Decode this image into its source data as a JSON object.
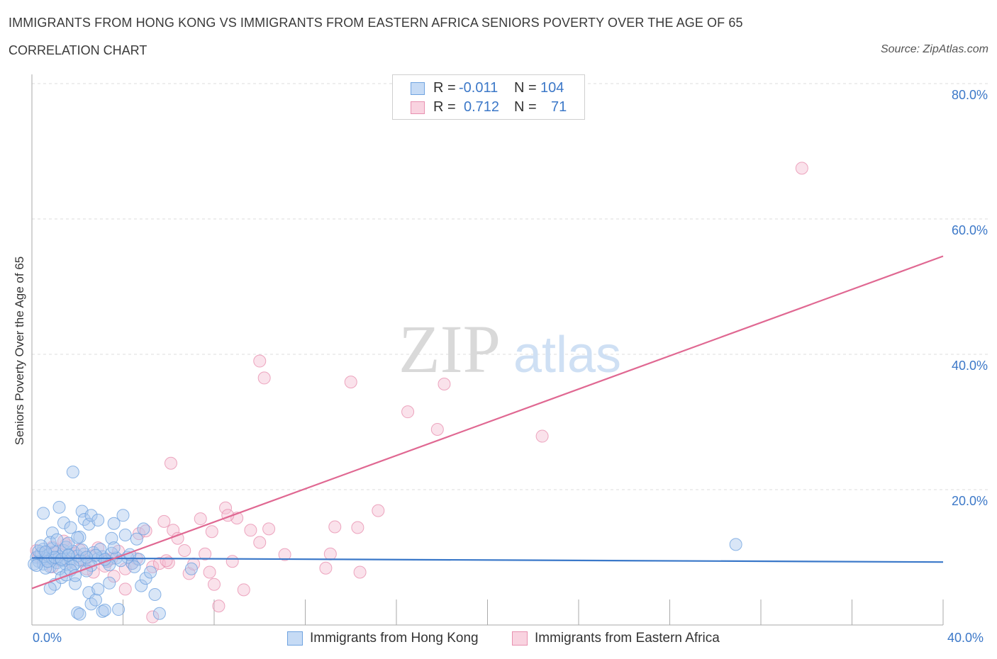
{
  "header": {
    "title": "IMMIGRANTS FROM HONG KONG VS IMMIGRANTS FROM EASTERN AFRICA SENIORS POVERTY OVER THE AGE OF 65",
    "subtitle": "CORRELATION CHART",
    "source": "Source: ZipAtlas.com"
  },
  "stats": {
    "r_label": "R =",
    "n_label": "N =",
    "blue": {
      "r": "-0.011",
      "n": "104"
    },
    "pink": {
      "r": "0.712",
      "n": "71"
    }
  },
  "colors": {
    "blue": "#6fa3e0",
    "blue_fill": "#aac8ee",
    "blue_line": "#3a78c9",
    "pink": "#e891b0",
    "pink_fill": "#f5bfd2",
    "pink_line": "#e06892",
    "axis_text": "#3c78c8",
    "grid": "#dddddd"
  },
  "watermark": {
    "zip": "ZIP",
    "atlas": "atlas"
  },
  "chart_data": {
    "type": "scatter",
    "title": "IMMIGRANTS FROM HONG KONG VS IMMIGRANTS FROM EASTERN AFRICA SENIORS POVERTY OVER THE AGE OF 65",
    "xlabel": "",
    "ylabel": "Seniors Poverty Over the Age of 65",
    "xlim": [
      0,
      40
    ],
    "ylim": [
      0,
      80
    ],
    "x_tick_labels": [
      "0.0%",
      "40.0%"
    ],
    "y_ticks": [
      20,
      40,
      60,
      80
    ],
    "y_tick_labels": [
      "20.0%",
      "40.0%",
      "60.0%",
      "80.0%"
    ],
    "grid": true,
    "series": [
      {
        "name": "Immigrants from Hong Kong",
        "color": "blue",
        "R": -0.011,
        "N": 104,
        "trend": {
          "x": [
            0,
            40
          ],
          "y": [
            9.9,
            9.3
          ]
        },
        "points": [
          [
            0.2,
            10.0
          ],
          [
            0.3,
            9.4
          ],
          [
            0.4,
            10.6
          ],
          [
            0.5,
            9.0
          ],
          [
            0.5,
            11.2
          ],
          [
            0.6,
            9.8
          ],
          [
            0.7,
            10.3
          ],
          [
            0.8,
            8.6
          ],
          [
            0.9,
            9.9
          ],
          [
            1.0,
            10.8
          ],
          [
            1.1,
            9.2
          ],
          [
            1.2,
            10.1
          ],
          [
            1.3,
            9.5
          ],
          [
            1.4,
            11.0
          ],
          [
            1.5,
            8.9
          ],
          [
            1.6,
            10.4
          ],
          [
            1.7,
            9.7
          ],
          [
            1.8,
            10.9
          ],
          [
            1.9,
            9.1
          ],
          [
            2.0,
            10.2
          ],
          [
            2.1,
            9.6
          ],
          [
            2.3,
            10.5
          ],
          [
            2.5,
            9.3
          ],
          [
            2.7,
            10.7
          ],
          [
            2.9,
            9.8
          ],
          [
            3.1,
            10.1
          ],
          [
            3.3,
            9.4
          ],
          [
            3.5,
            10.6
          ],
          [
            3.7,
            9.9
          ],
          [
            0.1,
            9.0
          ],
          [
            0.3,
            10.9
          ],
          [
            0.6,
            8.4
          ],
          [
            0.9,
            11.3
          ],
          [
            1.2,
            8.3
          ],
          [
            1.5,
            11.5
          ],
          [
            1.8,
            8.7
          ],
          [
            2.2,
            11.1
          ],
          [
            2.6,
            8.8
          ],
          [
            3.0,
            11.2
          ],
          [
            3.4,
            8.9
          ],
          [
            0.5,
            16.5
          ],
          [
            0.9,
            13.6
          ],
          [
            1.2,
            17.4
          ],
          [
            1.4,
            15.1
          ],
          [
            1.7,
            14.4
          ],
          [
            1.8,
            22.6
          ],
          [
            2.1,
            13.0
          ],
          [
            2.2,
            16.8
          ],
          [
            2.3,
            15.6
          ],
          [
            2.5,
            14.9
          ],
          [
            2.6,
            16.2
          ],
          [
            2.9,
            15.5
          ],
          [
            3.5,
            12.8
          ],
          [
            3.6,
            15.0
          ],
          [
            4.0,
            16.2
          ],
          [
            4.1,
            13.3
          ],
          [
            4.6,
            12.7
          ],
          [
            4.9,
            14.2
          ],
          [
            0.8,
            12.2
          ],
          [
            1.1,
            12.6
          ],
          [
            1.6,
            12.1
          ],
          [
            2.0,
            12.9
          ],
          [
            1.0,
            6.0
          ],
          [
            1.3,
            7.0
          ],
          [
            1.5,
            7.4
          ],
          [
            1.7,
            8.1
          ],
          [
            1.9,
            6.1
          ],
          [
            2.4,
            8.0
          ],
          [
            2.0,
            1.8
          ],
          [
            2.1,
            1.6
          ],
          [
            2.5,
            4.8
          ],
          [
            2.6,
            3.1
          ],
          [
            2.8,
            3.7
          ],
          [
            3.1,
            2.0
          ],
          [
            3.2,
            2.2
          ],
          [
            3.4,
            6.2
          ],
          [
            3.8,
            2.3
          ],
          [
            4.4,
            9.1
          ],
          [
            4.7,
            9.7
          ],
          [
            4.8,
            5.8
          ],
          [
            5.0,
            6.9
          ],
          [
            5.2,
            7.8
          ],
          [
            5.4,
            4.5
          ],
          [
            5.6,
            1.7
          ],
          [
            4.5,
            8.6
          ],
          [
            4.2,
            10.0
          ],
          [
            3.9,
            9.5
          ],
          [
            2.8,
            10.3
          ],
          [
            3.6,
            11.4
          ],
          [
            4.3,
            10.4
          ],
          [
            0.2,
            8.8
          ],
          [
            0.4,
            11.7
          ],
          [
            0.7,
            9.4
          ],
          [
            1.0,
            10.0
          ],
          [
            1.3,
            9.7
          ],
          [
            1.6,
            10.3
          ],
          [
            2.4,
            10.0
          ],
          [
            3.2,
            9.7
          ],
          [
            7.0,
            8.3
          ],
          [
            0.8,
            5.4
          ],
          [
            1.9,
            7.3
          ],
          [
            2.9,
            5.3
          ],
          [
            30.9,
            11.9
          ],
          [
            0.6,
            10.8
          ]
        ]
      },
      {
        "name": "Immigrants from Eastern Africa",
        "color": "pink",
        "R": 0.712,
        "N": 71,
        "trend": {
          "x": [
            0,
            40
          ],
          "y": [
            5.4,
            54.5
          ]
        },
        "points": [
          [
            0.2,
            11.0
          ],
          [
            0.3,
            10.1
          ],
          [
            0.5,
            9.6
          ],
          [
            0.7,
            10.8
          ],
          [
            0.9,
            11.5
          ],
          [
            1.1,
            9.8
          ],
          [
            1.3,
            10.4
          ],
          [
            1.5,
            11.9
          ],
          [
            1.7,
            9.3
          ],
          [
            1.9,
            10.6
          ],
          [
            2.1,
            11.1
          ],
          [
            2.3,
            9.5
          ],
          [
            2.6,
            10.2
          ],
          [
            2.9,
            11.4
          ],
          [
            3.2,
            8.7
          ],
          [
            3.5,
            9.8
          ],
          [
            3.8,
            10.9
          ],
          [
            4.1,
            8.3
          ],
          [
            4.4,
            9.1
          ],
          [
            4.7,
            13.5
          ],
          [
            5.0,
            13.9
          ],
          [
            5.3,
            8.6
          ],
          [
            5.6,
            9.1
          ],
          [
            5.8,
            15.3
          ],
          [
            6.0,
            9.2
          ],
          [
            6.2,
            14.0
          ],
          [
            6.4,
            12.8
          ],
          [
            6.7,
            11.0
          ],
          [
            6.9,
            7.6
          ],
          [
            7.1,
            9.0
          ],
          [
            7.4,
            15.7
          ],
          [
            7.6,
            10.5
          ],
          [
            7.8,
            7.8
          ],
          [
            8.0,
            6.0
          ],
          [
            8.2,
            2.8
          ],
          [
            8.5,
            17.3
          ],
          [
            8.8,
            9.4
          ],
          [
            9.0,
            15.8
          ],
          [
            9.3,
            5.2
          ],
          [
            9.6,
            14.0
          ],
          [
            10.0,
            12.2
          ],
          [
            10.4,
            14.2
          ],
          [
            11.1,
            10.4
          ],
          [
            12.9,
            8.4
          ],
          [
            13.1,
            10.5
          ],
          [
            13.3,
            14.5
          ],
          [
            14.3,
            14.4
          ],
          [
            14.4,
            7.8
          ],
          [
            15.2,
            16.9
          ],
          [
            16.5,
            31.5
          ],
          [
            17.8,
            28.9
          ],
          [
            18.1,
            35.6
          ],
          [
            14.0,
            35.9
          ],
          [
            10.0,
            39.0
          ],
          [
            10.2,
            36.5
          ],
          [
            6.1,
            23.9
          ],
          [
            22.4,
            27.9
          ],
          [
            33.8,
            67.5
          ],
          [
            4.1,
            5.3
          ],
          [
            5.3,
            1.2
          ],
          [
            3.3,
            9.6
          ],
          [
            2.7,
            7.8
          ],
          [
            1.4,
            12.4
          ],
          [
            0.9,
            8.6
          ],
          [
            4.6,
            9.8
          ],
          [
            7.9,
            13.8
          ],
          [
            8.6,
            16.2
          ],
          [
            2.4,
            8.3
          ],
          [
            3.6,
            7.2
          ],
          [
            5.9,
            9.5
          ],
          [
            1.0,
            10.7
          ]
        ]
      }
    ]
  },
  "legend": {
    "items": [
      {
        "label": "Immigrants from Hong Kong"
      },
      {
        "label": "Immigrants from Eastern Africa"
      }
    ]
  }
}
